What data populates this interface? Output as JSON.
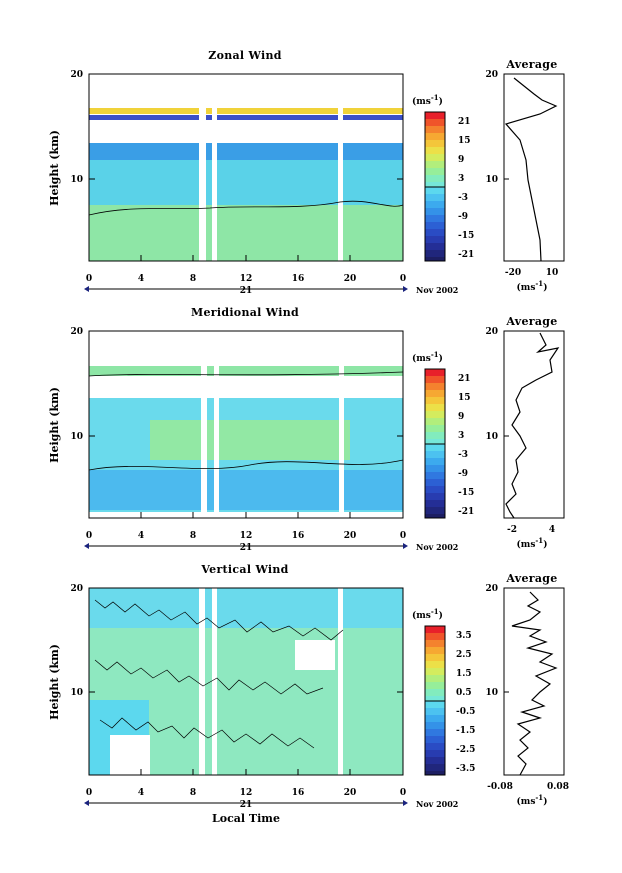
{
  "chart_data": [
    {
      "type": "heatmap",
      "title": "Zonal Wind",
      "ylabel": "Height (km)",
      "x_ticks": [
        "0",
        "4",
        "8",
        "12",
        "16",
        "20",
        "0"
      ],
      "y_ticks": [
        "10",
        "20"
      ],
      "date_day": "21",
      "date_month": "Nov 2002",
      "colorbar": {
        "unit": "(ms",
        "unit_exp": "-1",
        "unit_close": ")",
        "ticks": [
          "21",
          "15",
          "9",
          "3",
          "-3",
          "-9",
          "-15",
          "-21"
        ]
      },
      "profile": {
        "title": "Average",
        "x_ticks": [
          "-20",
          "10"
        ],
        "y_ticks": [
          "10",
          "20"
        ],
        "xlabel": "(ms",
        "xlabel_exp": "-1",
        "xlabel_close": ")"
      }
    },
    {
      "type": "heatmap",
      "title": "Meridional Wind",
      "ylabel": "Height (km)",
      "x_ticks": [
        "0",
        "4",
        "8",
        "12",
        "16",
        "20",
        "0"
      ],
      "y_ticks": [
        "10",
        "20"
      ],
      "date_day": "21",
      "date_month": "Nov 2002",
      "colorbar": {
        "unit": "(ms",
        "unit_exp": "-1",
        "unit_close": ")",
        "ticks": [
          "21",
          "15",
          "9",
          "3",
          "-3",
          "-9",
          "-15",
          "-21"
        ]
      },
      "profile": {
        "title": "Average",
        "x_ticks": [
          "-2",
          "4"
        ],
        "y_ticks": [
          "10",
          "20"
        ],
        "xlabel": "(ms",
        "xlabel_exp": "-1",
        "xlabel_close": ")"
      }
    },
    {
      "type": "heatmap",
      "title": "Vertical Wind",
      "ylabel": "Height (km)",
      "xlabel": "Local Time",
      "x_ticks": [
        "0",
        "4",
        "8",
        "12",
        "16",
        "20",
        "0"
      ],
      "y_ticks": [
        "10",
        "20"
      ],
      "date_day": "21",
      "date_month": "Nov 2002",
      "colorbar": {
        "unit": "(ms",
        "unit_exp": "-1",
        "unit_close": ")",
        "ticks": [
          "3.5",
          "2.5",
          "1.5",
          "0.5",
          "-0.5",
          "-1.5",
          "-2.5",
          "-3.5"
        ]
      },
      "profile": {
        "title": "Average",
        "x_ticks": [
          "-0.08",
          "0.08"
        ],
        "y_ticks": [
          "10",
          "20"
        ],
        "xlabel": "(ms",
        "xlabel_exp": "-1",
        "xlabel_close": ")"
      }
    }
  ]
}
